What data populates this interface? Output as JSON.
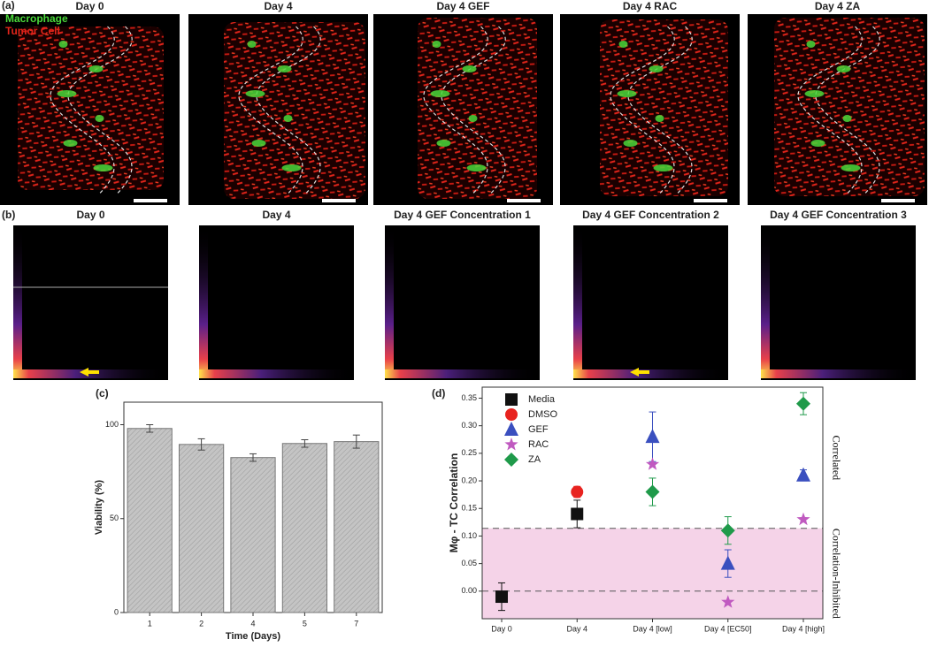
{
  "image_panels": {
    "label": "(a)",
    "titles": [
      "Day 0",
      "Day 4",
      "Day 4 GEF",
      "Day 4 RAC",
      "Day 4 ZA"
    ],
    "legend": [
      "Macrophage",
      "Tumor Cell"
    ]
  },
  "density_panels": {
    "label": "(b)",
    "titles": [
      "Day 0",
      "Day 4",
      "Day 4 GEF Concentration 1",
      "Day 4 GEF Concentration 2",
      "Day 4 GEF Concentration 3"
    ]
  },
  "chart_data": [
    {
      "type": "bar",
      "panel_label": "(c)",
      "x_label": "Time (Days)",
      "y_label": "Viability (%)",
      "categories": [
        "1",
        "2",
        "4",
        "5",
        "7"
      ],
      "values": [
        98,
        89.5,
        82.5,
        90,
        91
      ],
      "errors": [
        2,
        3,
        2,
        2,
        3.5
      ],
      "color": "#b8b8b8",
      "ylim": [
        0,
        112
      ],
      "yticks": [
        0,
        50,
        100
      ]
    },
    {
      "type": "scatter",
      "panel_label": "(d)",
      "y_label": "Mφ - TC Correlation",
      "categories": [
        "Day 0",
        "Day 4",
        "Day 4 [low]",
        "Day 4 [EC50]",
        "Day 4 [high]"
      ],
      "ylim": [
        -0.05,
        0.37
      ],
      "yticks": [
        {
          "value": 0,
          "label": "0.00"
        },
        0.05,
        {
          "value": 0.1,
          "label": "0.10"
        },
        0.15,
        {
          "value": 0.2,
          "label": "0.20"
        },
        0.25,
        {
          "value": 0.3,
          "label": "0.30"
        },
        0.35
      ],
      "threshold": 0.114,
      "reference": 0,
      "shade_color": "#f5d3e8",
      "annotations": [
        "Correlated",
        "Correlation-Inhibited"
      ],
      "series": [
        {
          "name": "Media",
          "color": "#111111",
          "marker": "square",
          "values": [
            -0.01,
            0.14,
            null,
            null,
            null
          ],
          "errors": [
            0.025,
            0.025,
            null,
            null,
            null
          ]
        },
        {
          "name": "DMSO",
          "color": "#e8231f",
          "marker": "circle",
          "values": [
            null,
            0.18,
            null,
            null,
            null
          ],
          "errors": [
            null,
            0.01,
            null,
            null,
            null
          ]
        },
        {
          "name": "GEF",
          "color": "#3a4fbf",
          "marker": "triangle",
          "values": [
            null,
            null,
            0.28,
            0.05,
            0.21
          ],
          "errors": [
            null,
            null,
            0.045,
            0.025,
            0.01
          ]
        },
        {
          "name": "RAC",
          "color": "#c05ac0",
          "marker": "star",
          "values": [
            null,
            null,
            0.23,
            -0.02,
            0.13
          ]
        },
        {
          "name": "ZA",
          "color": "#1f9a4a",
          "marker": "diamond",
          "values": [
            null,
            null,
            0.18,
            0.11,
            0.34
          ],
          "errors": [
            null,
            null,
            0.025,
            0.025,
            0.02
          ]
        }
      ]
    }
  ]
}
